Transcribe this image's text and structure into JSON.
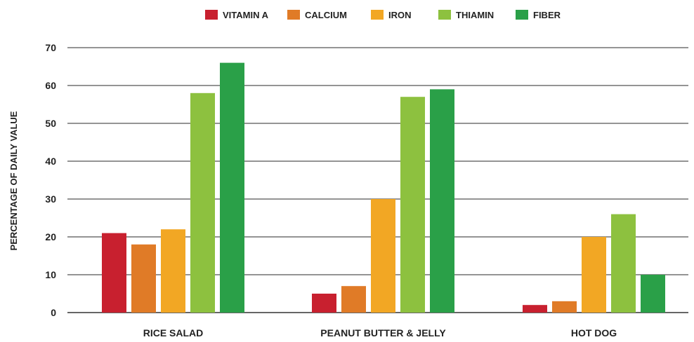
{
  "chart_data": {
    "type": "bar",
    "title": "",
    "xlabel": "",
    "ylabel": "PERCENTAGE OF DAILY VALUE",
    "ylim": [
      0,
      70
    ],
    "yticks": [
      0,
      10,
      20,
      30,
      40,
      50,
      60,
      70
    ],
    "grid": true,
    "legend_position": "top-center",
    "categories": [
      "RICE SALAD",
      "PEANUT BUTTER & JELLY",
      "HOT DOG"
    ],
    "series": [
      {
        "name": "VITAMIN A",
        "color": "#c8202f",
        "values": [
          21,
          5,
          2
        ]
      },
      {
        "name": "CALCIUM",
        "color": "#e07b27",
        "values": [
          18,
          7,
          3
        ]
      },
      {
        "name": "IRON",
        "color": "#f2a724",
        "values": [
          22,
          30,
          20
        ]
      },
      {
        "name": "THIAMIN",
        "color": "#8dc13f",
        "values": [
          58,
          57,
          26
        ]
      },
      {
        "name": "FIBER",
        "color": "#2aa048",
        "values": [
          66,
          59,
          10
        ]
      }
    ]
  }
}
